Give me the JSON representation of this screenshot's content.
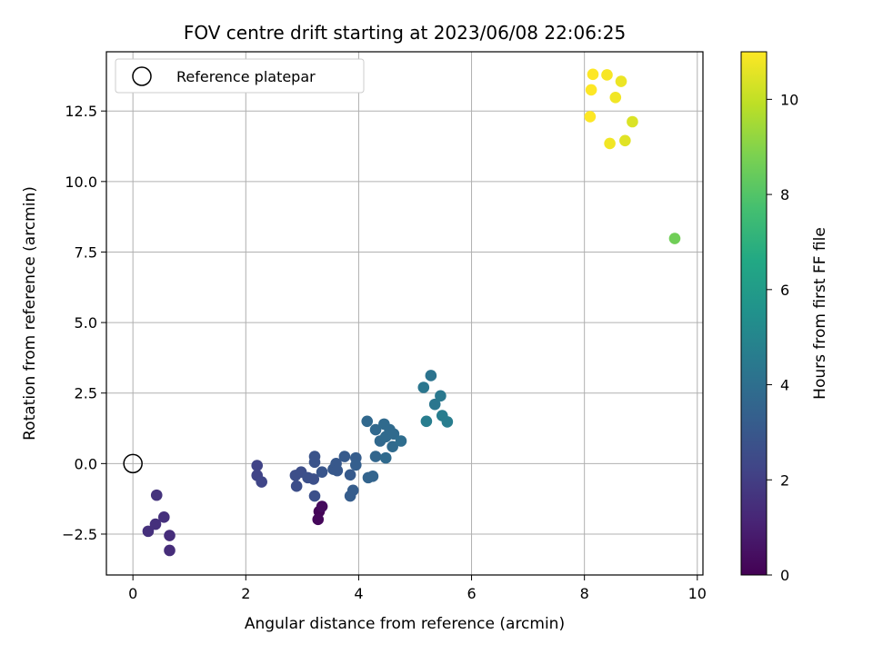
{
  "chart_data": {
    "type": "scatter",
    "title": "FOV centre drift starting at 2023/06/08 22:06:25",
    "xlabel": "Angular distance from reference (arcmin)",
    "ylabel": "Rotation from reference (arcmin)",
    "xlim": [
      -0.47,
      10.1
    ],
    "ylim": [
      -3.95,
      14.6
    ],
    "xticks": [
      0,
      2,
      4,
      6,
      8,
      10
    ],
    "xtick_labels": [
      "0",
      "2",
      "4",
      "6",
      "8",
      "10"
    ],
    "yticks": [
      -2.5,
      0,
      2.5,
      5,
      7.5,
      10,
      12.5
    ],
    "ytick_labels": [
      "−2.5",
      "0.0",
      "2.5",
      "5.0",
      "7.5",
      "10.0",
      "12.5"
    ],
    "grid": true,
    "legend": {
      "placement": "top-left",
      "entries": [
        "Reference platepar"
      ]
    },
    "reference_point": {
      "x": 0,
      "y": 0
    },
    "colorbar": {
      "label": "Hours from first FF file",
      "range": [
        0,
        11
      ],
      "ticks": [
        0,
        2,
        4,
        6,
        8,
        10
      ],
      "tick_labels": [
        "0",
        "2",
        "4",
        "6",
        "8",
        "10"
      ],
      "colormap": "viridis"
    },
    "points": [
      {
        "x": 3.3,
        "y": -1.7,
        "c": 0.1
      },
      {
        "x": 3.28,
        "y": -1.98,
        "c": 0.2
      },
      {
        "x": 3.35,
        "y": -1.52,
        "c": 0.3
      },
      {
        "x": 0.65,
        "y": -3.08,
        "c": 1.4
      },
      {
        "x": 0.65,
        "y": -2.55,
        "c": 1.4
      },
      {
        "x": 0.27,
        "y": -2.4,
        "c": 1.5
      },
      {
        "x": 0.4,
        "y": -2.15,
        "c": 1.5
      },
      {
        "x": 0.55,
        "y": -1.9,
        "c": 1.5
      },
      {
        "x": 0.42,
        "y": -1.12,
        "c": 1.6
      },
      {
        "x": 2.2,
        "y": -0.07,
        "c": 2.2
      },
      {
        "x": 2.2,
        "y": -0.42,
        "c": 2.2
      },
      {
        "x": 2.28,
        "y": -0.65,
        "c": 2.3
      },
      {
        "x": 2.88,
        "y": -0.42,
        "c": 2.6
      },
      {
        "x": 2.9,
        "y": -0.8,
        "c": 2.6
      },
      {
        "x": 2.98,
        "y": -0.3,
        "c": 2.6
      },
      {
        "x": 3.1,
        "y": -0.5,
        "c": 2.7
      },
      {
        "x": 3.2,
        "y": -0.55,
        "c": 2.7
      },
      {
        "x": 3.22,
        "y": -1.15,
        "c": 2.7
      },
      {
        "x": 3.22,
        "y": 0.05,
        "c": 2.8
      },
      {
        "x": 3.22,
        "y": 0.25,
        "c": 2.8
      },
      {
        "x": 3.35,
        "y": -0.3,
        "c": 2.9
      },
      {
        "x": 3.55,
        "y": -0.2,
        "c": 3.0
      },
      {
        "x": 3.6,
        "y": 0.0,
        "c": 3.0
      },
      {
        "x": 3.62,
        "y": -0.25,
        "c": 3.0
      },
      {
        "x": 3.75,
        "y": 0.25,
        "c": 3.1
      },
      {
        "x": 3.85,
        "y": -0.4,
        "c": 3.1
      },
      {
        "x": 3.85,
        "y": -1.15,
        "c": 3.2
      },
      {
        "x": 3.9,
        "y": -0.95,
        "c": 3.2
      },
      {
        "x": 3.95,
        "y": 0.2,
        "c": 3.2
      },
      {
        "x": 3.95,
        "y": -0.05,
        "c": 3.3
      },
      {
        "x": 4.15,
        "y": 1.5,
        "c": 3.7
      },
      {
        "x": 4.17,
        "y": -0.5,
        "c": 3.5
      },
      {
        "x": 4.25,
        "y": -0.45,
        "c": 3.5
      },
      {
        "x": 4.3,
        "y": 0.25,
        "c": 3.6
      },
      {
        "x": 4.3,
        "y": 1.2,
        "c": 3.7
      },
      {
        "x": 4.38,
        "y": 0.8,
        "c": 3.7
      },
      {
        "x": 4.45,
        "y": 1.4,
        "c": 3.8
      },
      {
        "x": 4.48,
        "y": 0.2,
        "c": 3.8
      },
      {
        "x": 4.48,
        "y": 0.95,
        "c": 3.8
      },
      {
        "x": 4.55,
        "y": 1.2,
        "c": 3.8
      },
      {
        "x": 4.6,
        "y": 0.6,
        "c": 3.8
      },
      {
        "x": 4.62,
        "y": 1.05,
        "c": 3.8
      },
      {
        "x": 4.75,
        "y": 0.8,
        "c": 3.9
      },
      {
        "x": 5.15,
        "y": 2.7,
        "c": 4.3
      },
      {
        "x": 5.2,
        "y": 1.5,
        "c": 4.6
      },
      {
        "x": 5.28,
        "y": 3.12,
        "c": 4.2
      },
      {
        "x": 5.35,
        "y": 2.1,
        "c": 4.3
      },
      {
        "x": 5.45,
        "y": 2.4,
        "c": 4.4
      },
      {
        "x": 5.48,
        "y": 1.7,
        "c": 4.6
      },
      {
        "x": 5.57,
        "y": 1.48,
        "c": 4.6
      },
      {
        "x": 9.6,
        "y": 7.98,
        "c": 8.6
      },
      {
        "x": 8.1,
        "y": 12.3,
        "c": 11.0
      },
      {
        "x": 8.12,
        "y": 13.25,
        "c": 11.0
      },
      {
        "x": 8.15,
        "y": 13.8,
        "c": 11.0
      },
      {
        "x": 8.4,
        "y": 13.78,
        "c": 10.9
      },
      {
        "x": 8.45,
        "y": 11.35,
        "c": 10.8
      },
      {
        "x": 8.55,
        "y": 12.98,
        "c": 10.8
      },
      {
        "x": 8.65,
        "y": 13.55,
        "c": 10.7
      },
      {
        "x": 8.72,
        "y": 11.45,
        "c": 10.5
      },
      {
        "x": 8.85,
        "y": 12.12,
        "c": 10.4
      }
    ]
  }
}
